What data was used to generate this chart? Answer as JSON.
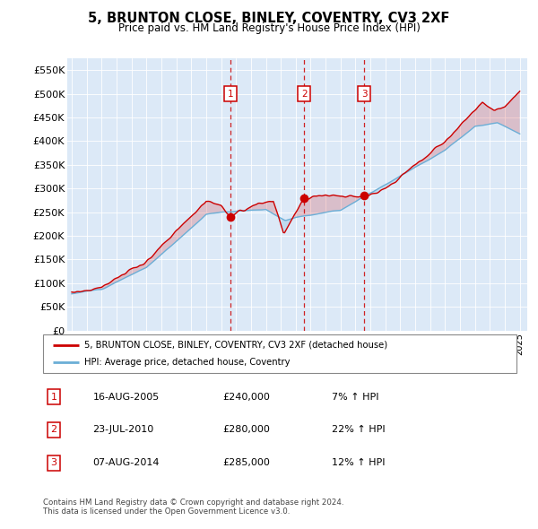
{
  "title": "5, BRUNTON CLOSE, BINLEY, COVENTRY, CV3 2XF",
  "subtitle": "Price paid vs. HM Land Registry's House Price Index (HPI)",
  "plot_bg": "#dce9f7",
  "ylim": [
    0,
    575000
  ],
  "yticks": [
    0,
    50000,
    100000,
    150000,
    200000,
    250000,
    300000,
    350000,
    400000,
    450000,
    500000,
    550000
  ],
  "ytick_labels": [
    "£0",
    "£50K",
    "£100K",
    "£150K",
    "£200K",
    "£250K",
    "£300K",
    "£350K",
    "£400K",
    "£450K",
    "£500K",
    "£550K"
  ],
  "sale_dates": [
    2005.62,
    2010.56,
    2014.6
  ],
  "sale_prices": [
    240000,
    280000,
    285000
  ],
  "sale_labels": [
    "1",
    "2",
    "3"
  ],
  "hpi_color": "#6baed6",
  "sale_color": "#cc0000",
  "legend_sale_label": "5, BRUNTON CLOSE, BINLEY, COVENTRY, CV3 2XF (detached house)",
  "legend_hpi_label": "HPI: Average price, detached house, Coventry",
  "table_rows": [
    [
      "1",
      "16-AUG-2005",
      "£240,000",
      "7% ↑ HPI"
    ],
    [
      "2",
      "23-JUL-2010",
      "£280,000",
      "22% ↑ HPI"
    ],
    [
      "3",
      "07-AUG-2014",
      "£285,000",
      "12% ↑ HPI"
    ]
  ],
  "footnote": "Contains HM Land Registry data © Crown copyright and database right 2024.\nThis data is licensed under the Open Government Licence v3.0."
}
